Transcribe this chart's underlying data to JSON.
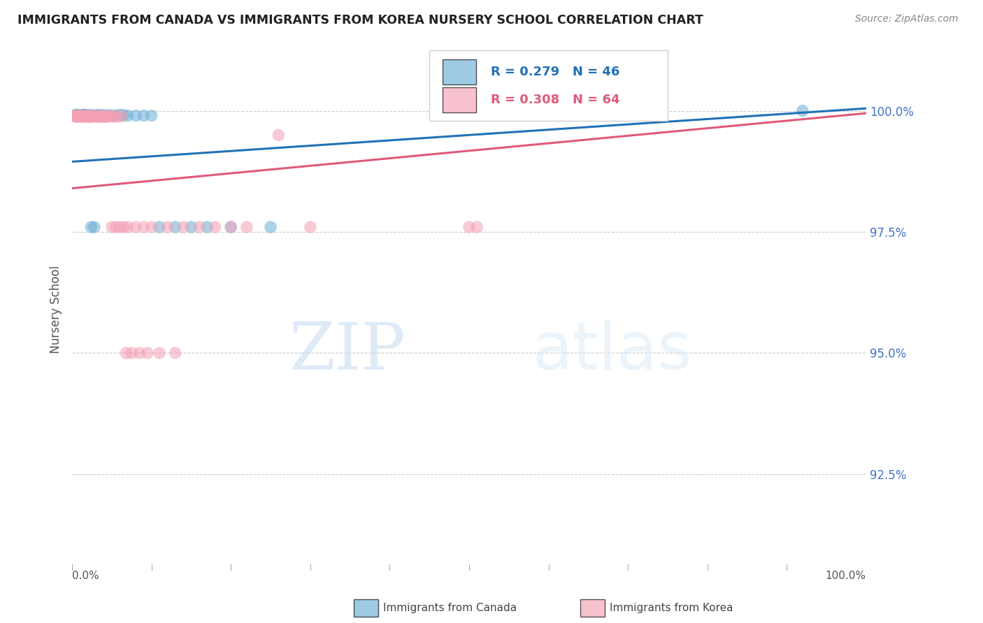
{
  "title": "IMMIGRANTS FROM CANADA VS IMMIGRANTS FROM KOREA NURSERY SCHOOL CORRELATION CHART",
  "source": "Source: ZipAtlas.com",
  "ylabel": "Nursery School",
  "ytick_labels": [
    "92.5%",
    "95.0%",
    "97.5%",
    "100.0%"
  ],
  "ytick_values": [
    0.925,
    0.95,
    0.975,
    1.0
  ],
  "xlim": [
    0.0,
    1.0
  ],
  "ylim": [
    0.905,
    1.013
  ],
  "legend_canada": "Immigrants from Canada",
  "legend_korea": "Immigrants from Korea",
  "r_canada": 0.279,
  "n_canada": 46,
  "r_korea": 0.308,
  "n_korea": 64,
  "color_canada": "#6aaed6",
  "color_korea": "#f4a0b5",
  "trend_color_canada": "#2171b5",
  "trend_color_korea": "#e05a7a",
  "canada_x": [
    0.003,
    0.005,
    0.006,
    0.008,
    0.009,
    0.01,
    0.012,
    0.013,
    0.015,
    0.016,
    0.018,
    0.02,
    0.022,
    0.025,
    0.027,
    0.03,
    0.032,
    0.035,
    0.038,
    0.04,
    0.043,
    0.046,
    0.05,
    0.055,
    0.06,
    0.065,
    0.07,
    0.08,
    0.09,
    0.1,
    0.11,
    0.13,
    0.15,
    0.17,
    0.2,
    0.25,
    0.004,
    0.007,
    0.011,
    0.014,
    0.017,
    0.021,
    0.024,
    0.028,
    0.92,
    0.033
  ],
  "canada_y": [
    0.999,
    0.9992,
    0.9991,
    0.999,
    0.999,
    0.9991,
    0.999,
    0.9991,
    0.9992,
    0.9991,
    0.9991,
    0.999,
    0.9991,
    0.9991,
    0.999,
    0.999,
    0.9991,
    0.9991,
    0.999,
    0.9991,
    0.999,
    0.9991,
    0.999,
    0.999,
    0.9992,
    0.9991,
    0.999,
    0.999,
    0.999,
    0.999,
    0.976,
    0.976,
    0.976,
    0.976,
    0.976,
    0.976,
    0.999,
    0.9991,
    0.999,
    0.999,
    0.999,
    0.999,
    0.976,
    0.976,
    1.0,
    0.999
  ],
  "korea_x": [
    0.003,
    0.004,
    0.005,
    0.006,
    0.007,
    0.008,
    0.009,
    0.01,
    0.011,
    0.012,
    0.013,
    0.014,
    0.015,
    0.016,
    0.017,
    0.018,
    0.019,
    0.02,
    0.021,
    0.022,
    0.023,
    0.025,
    0.027,
    0.03,
    0.032,
    0.035,
    0.038,
    0.04,
    0.043,
    0.046,
    0.05,
    0.055,
    0.06,
    0.065,
    0.07,
    0.08,
    0.09,
    0.1,
    0.12,
    0.14,
    0.16,
    0.18,
    0.2,
    0.22,
    0.26,
    0.3,
    0.5,
    0.51,
    0.024,
    0.028,
    0.033,
    0.036,
    0.041,
    0.044,
    0.048,
    0.052,
    0.057,
    0.062,
    0.068,
    0.075,
    0.085,
    0.095,
    0.11,
    0.13
  ],
  "korea_y": [
    0.999,
    0.9988,
    0.999,
    0.9988,
    0.9989,
    0.9988,
    0.9989,
    0.999,
    0.9988,
    0.9989,
    0.9988,
    0.9989,
    0.9988,
    0.9989,
    0.9988,
    0.999,
    0.9988,
    0.9989,
    0.9988,
    0.9989,
    0.9988,
    0.9988,
    0.9989,
    0.9988,
    0.9988,
    0.9988,
    0.9989,
    0.9988,
    0.9989,
    0.9989,
    0.976,
    0.976,
    0.976,
    0.976,
    0.976,
    0.976,
    0.976,
    0.976,
    0.976,
    0.976,
    0.976,
    0.976,
    0.976,
    0.976,
    0.995,
    0.976,
    0.976,
    0.976,
    0.9988,
    0.9989,
    0.9988,
    0.9989,
    0.9988,
    0.9988,
    0.9989,
    0.9988,
    0.9988,
    0.9989,
    0.95,
    0.95,
    0.95,
    0.95,
    0.95,
    0.95
  ],
  "watermark_zip": "ZIP",
  "watermark_atlas": "atlas",
  "background_color": "#ffffff"
}
